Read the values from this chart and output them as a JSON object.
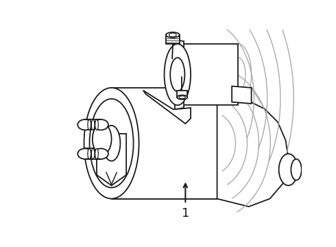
{
  "background_color": "#ffffff",
  "line_color": "#1a1a1a",
  "gray_color": "#aaaaaa",
  "label_text": "1",
  "figsize": [
    4.9,
    3.6
  ],
  "dpi": 100
}
